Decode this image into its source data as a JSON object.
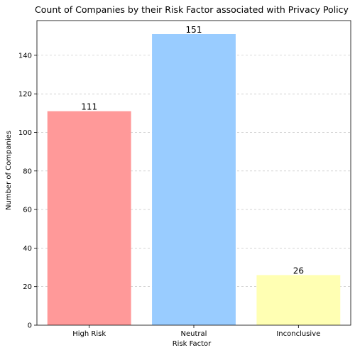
{
  "chart_data": {
    "type": "bar",
    "title": "Count of Companies by their Risk Factor associated with Privacy Policy",
    "xlabel": "Risk Factor",
    "ylabel": "Number of Companies",
    "categories": [
      "High Risk",
      "Neutral",
      "Inconclusive"
    ],
    "values": [
      111,
      151,
      26
    ],
    "data_labels": [
      "111",
      "151",
      "26"
    ],
    "colors": [
      "#ff9999",
      "#99ccff",
      "#ffffb3"
    ],
    "ylim": [
      0,
      158
    ],
    "yticks": [
      0,
      20,
      40,
      60,
      80,
      100,
      120,
      140
    ],
    "ytick_labels": [
      "0",
      "20",
      "40",
      "60",
      "80",
      "100",
      "120",
      "140"
    ],
    "grid": "horizontal-dashed",
    "legend": "none"
  }
}
